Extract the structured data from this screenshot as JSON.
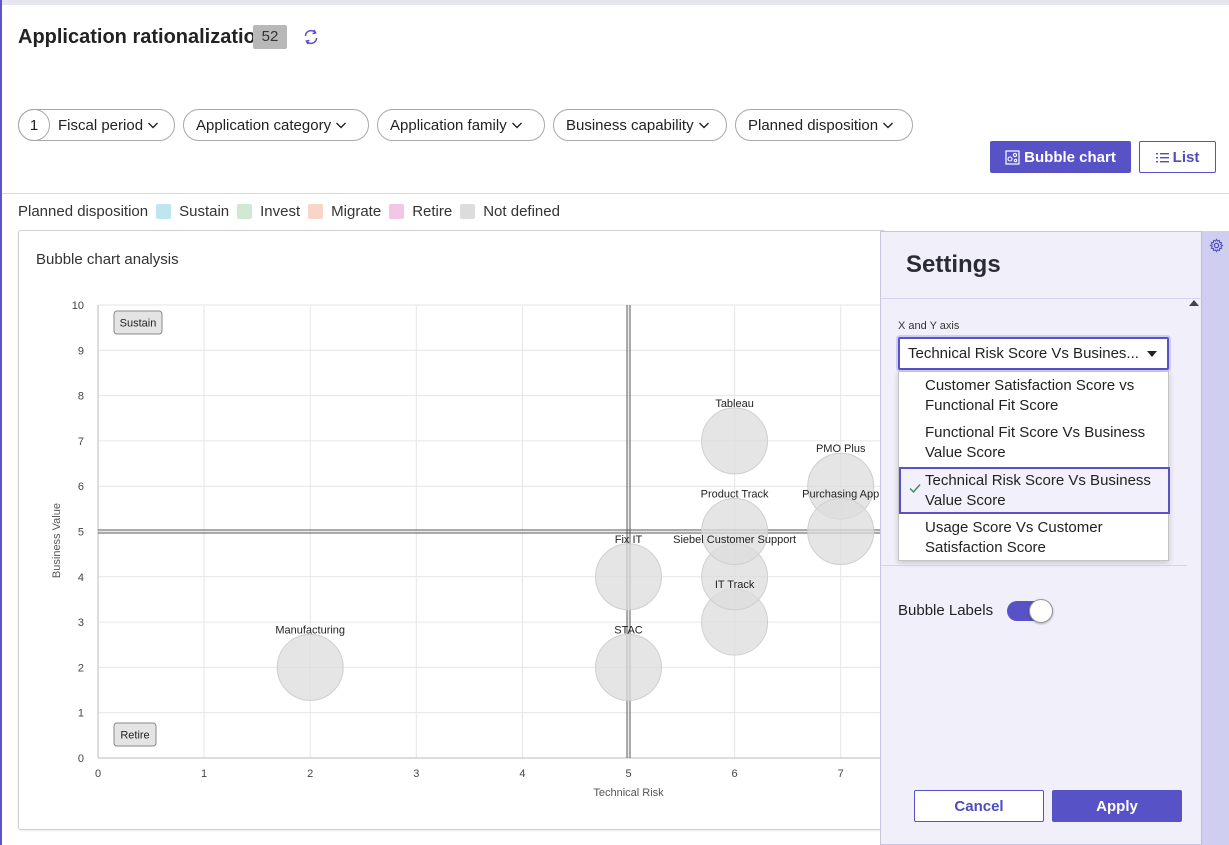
{
  "header": {
    "title": "Application rationalization",
    "count": "52"
  },
  "filters": {
    "count_badge": "1",
    "items": [
      "Fiscal period",
      "Application category",
      "Application family",
      "Business capability",
      "Planned disposition"
    ]
  },
  "view_buttons": {
    "bubble_chart": "Bubble chart",
    "list": "List",
    "active": "Bubble chart"
  },
  "legend": {
    "label": "Planned disposition",
    "items": [
      {
        "name": "Sustain",
        "color": "#bfe5ef"
      },
      {
        "name": "Invest",
        "color": "#cfe9d3"
      },
      {
        "name": "Migrate",
        "color": "#f9d4c8"
      },
      {
        "name": "Retire",
        "color": "#f3c6e6"
      },
      {
        "name": "Not defined",
        "color": "#dcdcdc"
      }
    ]
  },
  "card": {
    "title": "Bubble chart analysis"
  },
  "chart_data": {
    "type": "scatter",
    "xlabel": "Technical Risk",
    "ylabel": "Business Value",
    "xlim": [
      0,
      7
    ],
    "ylim": [
      0,
      10
    ],
    "x_ticks": [
      "0",
      "1",
      "2",
      "3",
      "4",
      "5",
      "6",
      "7"
    ],
    "y_ticks": [
      "0",
      "1",
      "2",
      "3",
      "4",
      "5",
      "6",
      "7",
      "8",
      "9",
      "10"
    ],
    "grid": true,
    "quadrant_labels": [
      "Sustain",
      "Retire"
    ],
    "points": [
      {
        "label": "Manufacturing",
        "x": 2,
        "y": 2
      },
      {
        "label": "STAC",
        "x": 5,
        "y": 2
      },
      {
        "label": "Fix IT",
        "x": 5,
        "y": 4
      },
      {
        "label": "IT Track",
        "x": 6,
        "y": 3
      },
      {
        "label": "Siebel Customer Support",
        "x": 6,
        "y": 4
      },
      {
        "label": "Product Track",
        "x": 6,
        "y": 5
      },
      {
        "label": "Tableau",
        "x": 6,
        "y": 7
      },
      {
        "label": "PMO Plus",
        "x": 7,
        "y": 6
      },
      {
        "label": "Purchasing App",
        "x": 7,
        "y": 5
      }
    ],
    "bubble_color": "#dcdcdc"
  },
  "settings": {
    "title": "Settings",
    "axis_field_label": "X and Y axis",
    "axis_selected_display": "Technical Risk Score Vs Busines...",
    "options": [
      {
        "line1": "Customer Satisfaction Score vs",
        "line2": "Functional Fit Score"
      },
      {
        "line1": "Functional Fit Score Vs Business",
        "line2": "Value Score"
      },
      {
        "line1": "Technical Risk Score Vs Business",
        "line2": "Value Score"
      },
      {
        "line1": "Usage Score Vs Customer",
        "line2": "Satisfaction Score"
      }
    ],
    "selected_index": 2,
    "bubble_labels_text": "Bubble Labels",
    "bubble_labels_on": true,
    "cancel_label": "Cancel",
    "apply_label": "Apply"
  },
  "colors": {
    "accent": "#5753c6"
  }
}
